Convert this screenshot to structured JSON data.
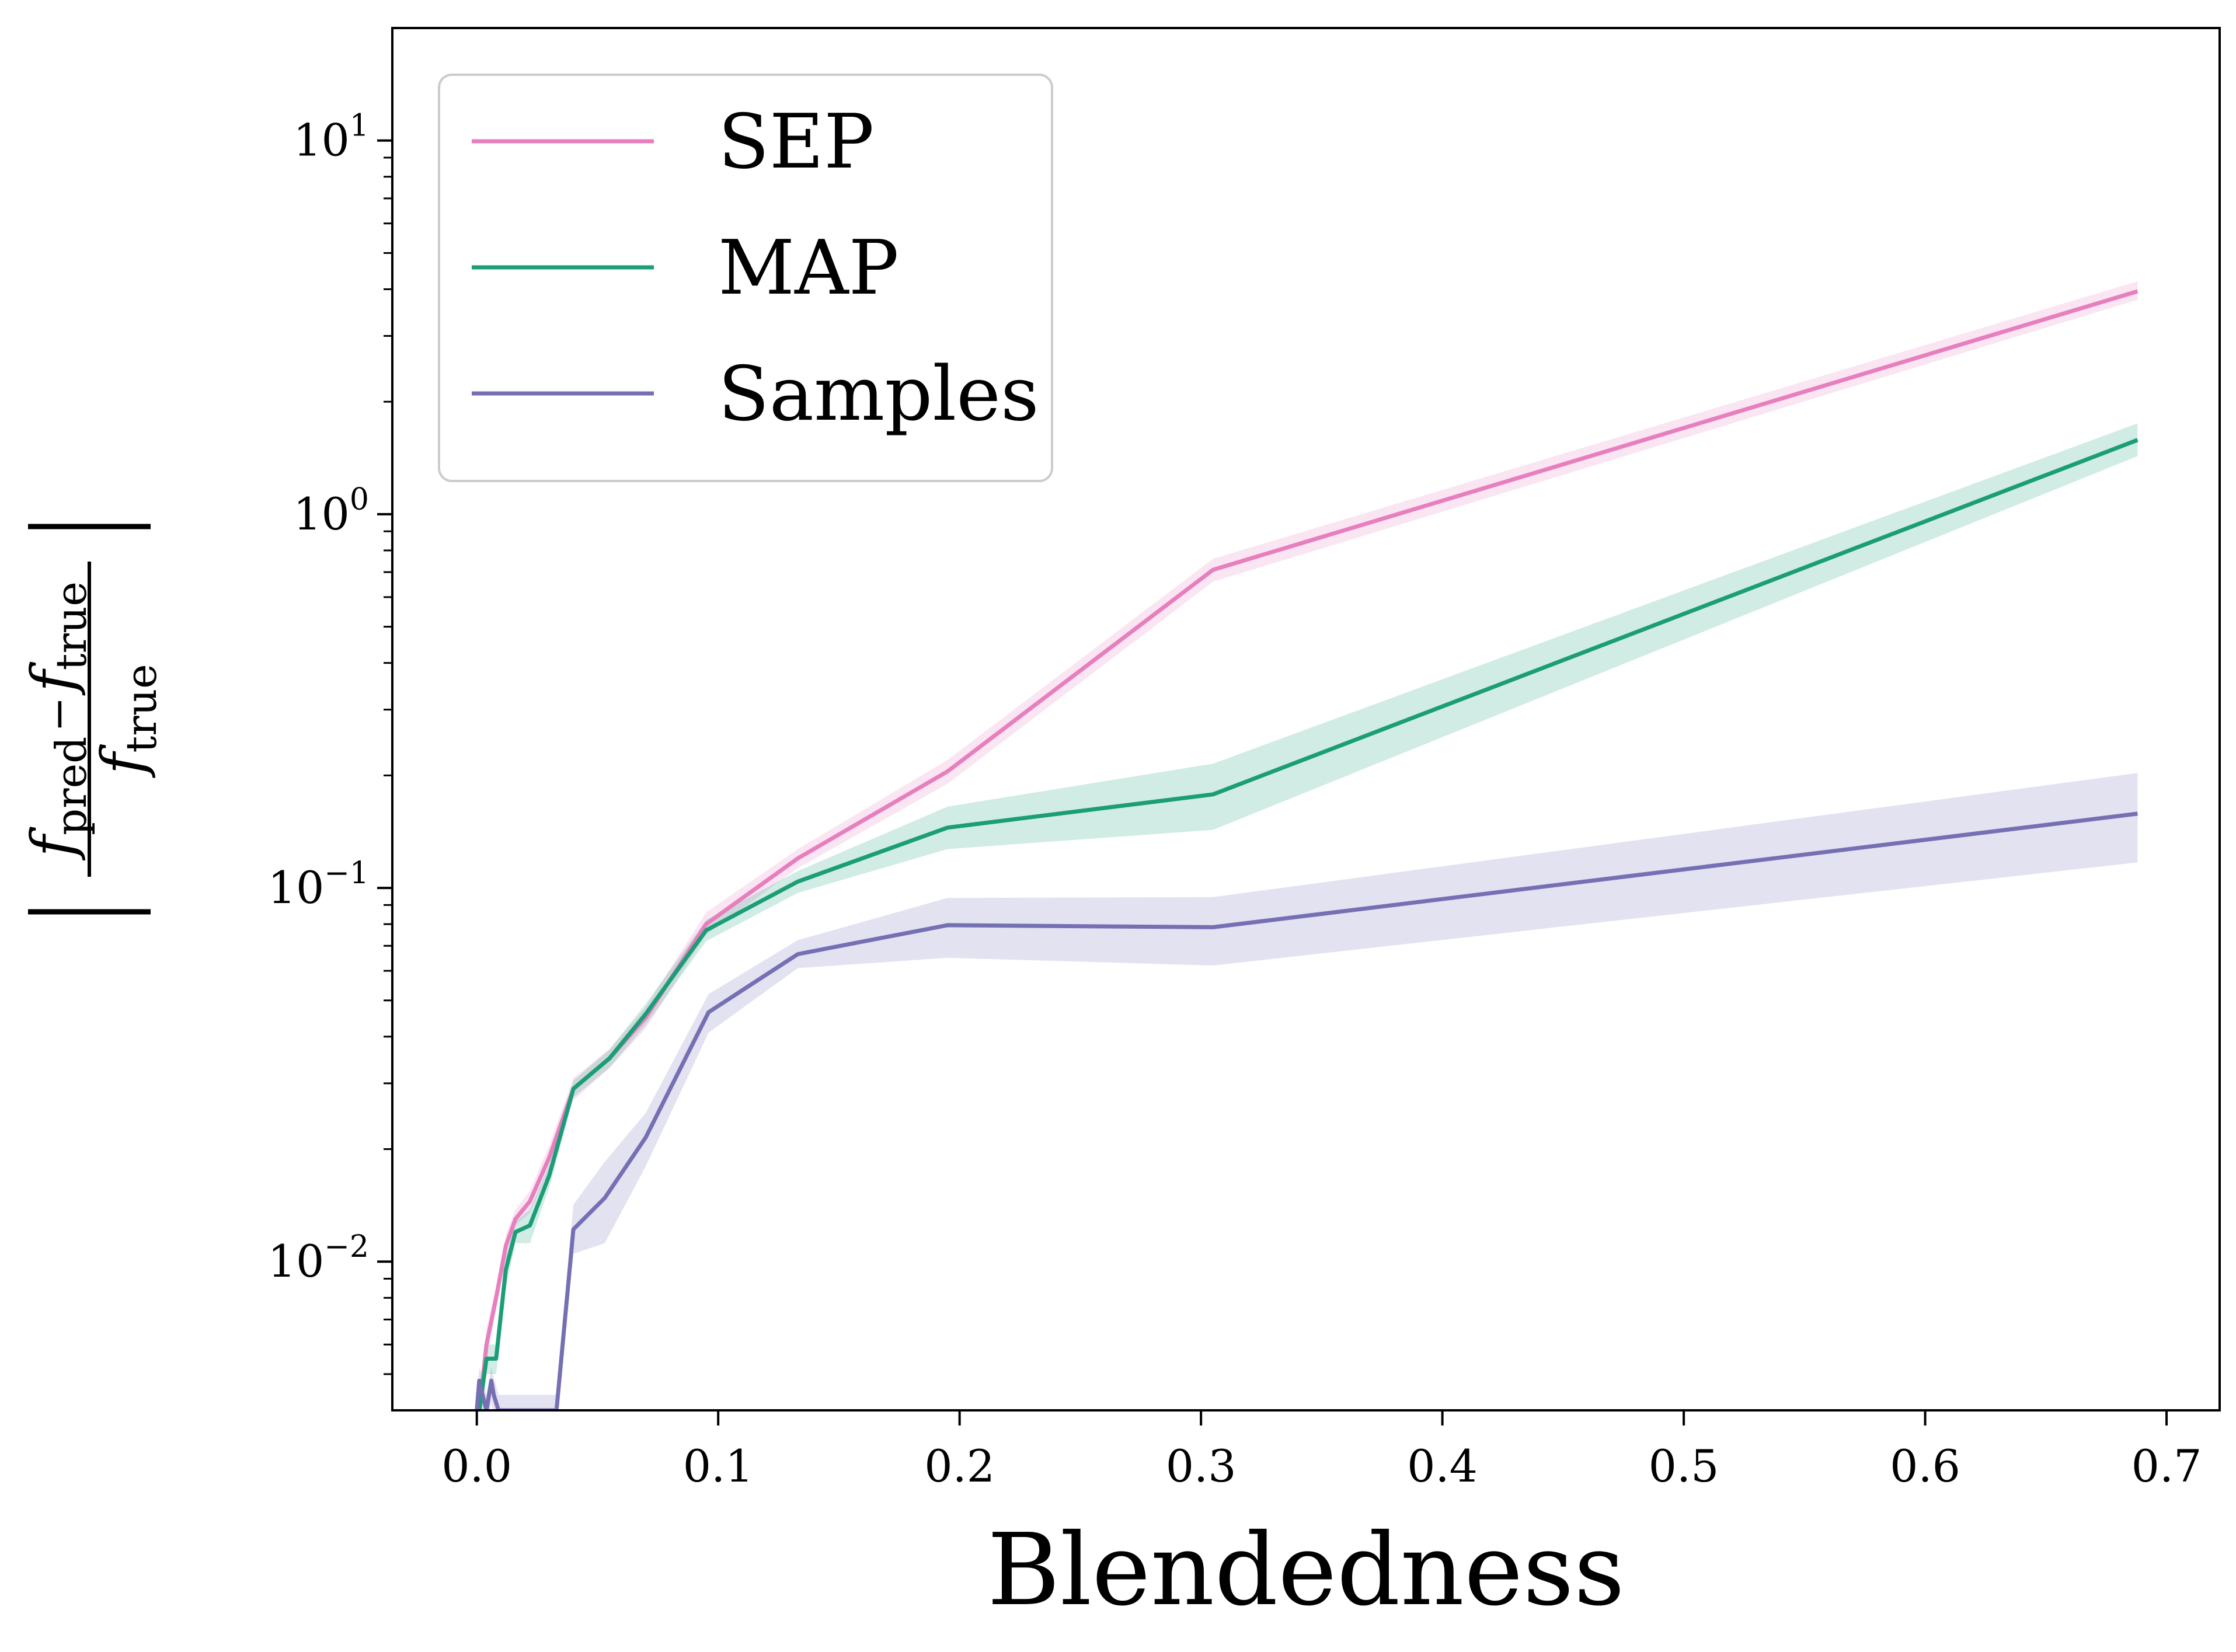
{
  "chart_data": {
    "type": "line",
    "title": "",
    "xlabel": "Blendedness",
    "ylabel": {
      "numerator_left": "f",
      "numerator_left_sub": "pred",
      "minus": "−",
      "numerator_right": "f",
      "numerator_right_sub": "true",
      "denominator": "f",
      "denominator_sub": "true"
    },
    "xlim": [
      -0.035,
      0.722
    ],
    "ylim": [
      0.004,
      20
    ],
    "yscale": "log",
    "x_ticks": [
      0.0,
      0.1,
      0.2,
      0.3,
      0.4,
      0.5,
      0.6,
      0.7
    ],
    "x_tick_labels": [
      "0.0",
      "0.1",
      "0.2",
      "0.3",
      "0.4",
      "0.5",
      "0.6",
      "0.7"
    ],
    "y_ticks": [
      {
        "value": 0.01,
        "base": "10",
        "exp": "−2"
      },
      {
        "value": 0.1,
        "base": "10",
        "exp": "−1"
      },
      {
        "value": 1,
        "base": "10",
        "exp": "0"
      },
      {
        "value": 10,
        "base": "10",
        "exp": "1"
      }
    ],
    "grid": false,
    "legend_position": "top-left",
    "series": [
      {
        "name": "SEP",
        "color": "#e77fbf",
        "x": [
          0.001,
          0.004,
          0.008,
          0.012,
          0.016,
          0.022,
          0.03,
          0.04,
          0.055,
          0.07,
          0.095,
          0.133,
          0.195,
          0.305,
          0.688
        ],
        "y": [
          0.004,
          0.006,
          0.008,
          0.011,
          0.013,
          0.0145,
          0.019,
          0.029,
          0.035,
          0.045,
          0.08,
          0.12,
          0.205,
          0.71,
          3.95
        ],
        "lower": [
          0.0035,
          0.0055,
          0.0075,
          0.01,
          0.0125,
          0.0135,
          0.0175,
          0.027,
          0.033,
          0.042,
          0.075,
          0.113,
          0.19,
          0.66,
          3.75
        ],
        "upper": [
          0.0045,
          0.0066,
          0.0086,
          0.0118,
          0.0138,
          0.0155,
          0.0205,
          0.031,
          0.037,
          0.048,
          0.086,
          0.127,
          0.22,
          0.76,
          4.2
        ]
      },
      {
        "name": "MAP",
        "color": "#1b9e77",
        "x": [
          0.001,
          0.004,
          0.008,
          0.012,
          0.016,
          0.022,
          0.03,
          0.04,
          0.055,
          0.07,
          0.095,
          0.133,
          0.195,
          0.305,
          0.688
        ],
        "y": [
          0.004,
          0.0055,
          0.0055,
          0.0095,
          0.012,
          0.0125,
          0.017,
          0.029,
          0.035,
          0.046,
          0.077,
          0.104,
          0.145,
          0.178,
          1.58
        ],
        "lower": [
          0.0035,
          0.005,
          0.005,
          0.0085,
          0.0112,
          0.0112,
          0.0158,
          0.0275,
          0.033,
          0.043,
          0.072,
          0.097,
          0.127,
          0.143,
          1.43
        ],
        "upper": [
          0.0045,
          0.006,
          0.006,
          0.0103,
          0.0128,
          0.0138,
          0.0182,
          0.0305,
          0.037,
          0.049,
          0.082,
          0.111,
          0.165,
          0.215,
          1.75
        ]
      },
      {
        "name": "Samples",
        "color": "#7570b3",
        "x": [
          0.0,
          0.001,
          0.002,
          0.004,
          0.006,
          0.007,
          0.009,
          0.033,
          0.04,
          0.053,
          0.07,
          0.096,
          0.133,
          0.195,
          0.305,
          0.688
        ],
        "y": [
          0.004,
          0.0048,
          0.0045,
          0.004,
          0.0048,
          0.0044,
          0.004,
          0.004,
          0.0122,
          0.0148,
          0.0215,
          0.0465,
          0.0665,
          0.0795,
          0.0785,
          0.158
        ],
        "lower": [
          0.0038,
          0.0042,
          0.004,
          0.0036,
          0.0042,
          0.0039,
          0.0036,
          0.0036,
          0.0105,
          0.0112,
          0.018,
          0.041,
          0.061,
          0.065,
          0.062,
          0.117
        ],
        "upper": [
          0.0042,
          0.0052,
          0.005,
          0.0044,
          0.0052,
          0.0049,
          0.0044,
          0.0044,
          0.0142,
          0.0185,
          0.025,
          0.052,
          0.0725,
          0.094,
          0.0945,
          0.203
        ]
      }
    ]
  }
}
